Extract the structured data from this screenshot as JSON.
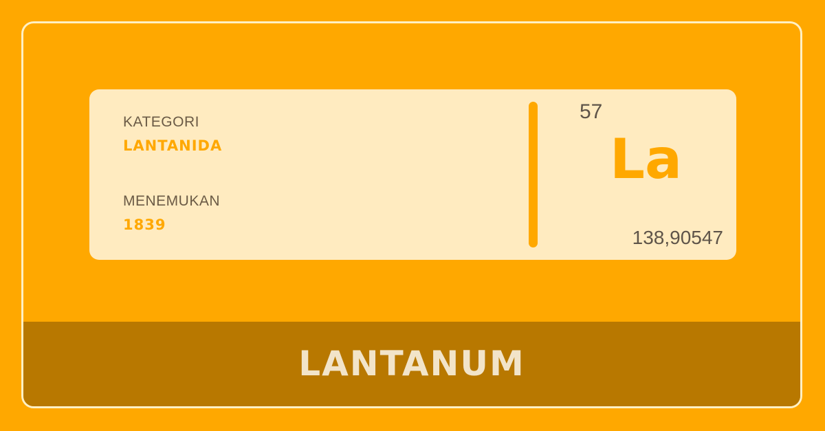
{
  "element": {
    "name": "LANTANUM",
    "symbol": "La",
    "atomic_number": "57",
    "atomic_mass": "138,90547"
  },
  "info": {
    "category_label": "KATEGORI",
    "category_value": "LANTANIDA",
    "discovered_label": "MENEMUKAN",
    "discovered_value": "1839"
  },
  "colors": {
    "background": "#FFA800",
    "card": "#FFEBC0",
    "footer": "#B87800",
    "accent": "#FFA800",
    "text_dark": "#5E5449",
    "footer_text": "#F2E4C9"
  }
}
